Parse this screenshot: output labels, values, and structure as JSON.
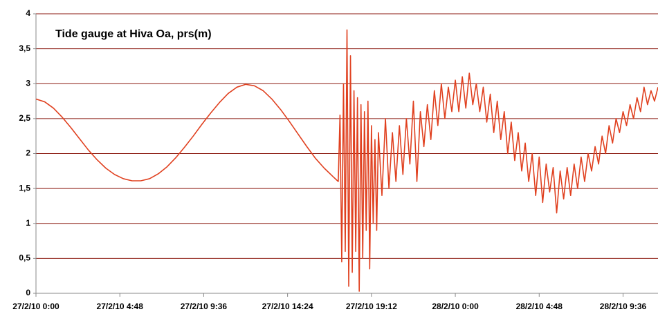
{
  "chart_data": {
    "type": "line",
    "title": "Tide gauge at Hiva Oa, prs(m)",
    "color": "#e0401f",
    "grid": true,
    "xlim": [
      0,
      35.6
    ],
    "ylim": [
      0,
      4
    ],
    "xticks": [
      {
        "value": 0,
        "label": "27/2/10 0:00"
      },
      {
        "value": 4.8,
        "label": "27/2/10 4:48"
      },
      {
        "value": 9.6,
        "label": "27/2/10 9:36"
      },
      {
        "value": 14.4,
        "label": "27/2/10 14:24"
      },
      {
        "value": 19.2,
        "label": "27/2/10 19:12"
      },
      {
        "value": 24,
        "label": "28/2/10 0:00"
      },
      {
        "value": 28.8,
        "label": "28/2/10 4:48"
      },
      {
        "value": 33.6,
        "label": "28/2/10 9:36"
      }
    ],
    "yticks": [
      0,
      {
        "value": 0.5,
        "label": "0,5"
      },
      1,
      {
        "value": 1.5,
        "label": "1,5"
      },
      2,
      {
        "value": 2.5,
        "label": "2,5"
      },
      3,
      {
        "value": 3.5,
        "label": "3,5"
      },
      4
    ],
    "x": [
      0,
      0.5,
      1,
      1.5,
      2,
      2.5,
      3,
      3.5,
      4,
      4.5,
      5,
      5.5,
      6,
      6.5,
      7,
      7.5,
      8,
      8.5,
      9,
      9.5,
      10,
      10.5,
      11,
      11.5,
      12,
      12.5,
      13,
      13.5,
      14,
      14.5,
      15,
      15.5,
      16,
      16.5,
      17,
      17.3,
      17.4,
      17.5,
      17.6,
      17.7,
      17.8,
      17.9,
      18.0,
      18.1,
      18.2,
      18.3,
      18.4,
      18.5,
      18.6,
      18.7,
      18.8,
      18.9,
      19.0,
      19.1,
      19.2,
      19.3,
      19.4,
      19.5,
      19.6,
      19.8,
      20.0,
      20.2,
      20.4,
      20.6,
      20.8,
      21.0,
      21.2,
      21.4,
      21.6,
      21.8,
      22.0,
      22.2,
      22.4,
      22.6,
      22.8,
      23.0,
      23.2,
      23.4,
      23.6,
      23.8,
      24.0,
      24.2,
      24.4,
      24.6,
      24.8,
      25.0,
      25.2,
      25.4,
      25.6,
      25.8,
      26.0,
      26.2,
      26.4,
      26.6,
      26.8,
      27.0,
      27.2,
      27.4,
      27.6,
      27.8,
      28.0,
      28.2,
      28.4,
      28.6,
      28.8,
      29.0,
      29.2,
      29.4,
      29.6,
      29.8,
      30.0,
      30.2,
      30.4,
      30.6,
      30.8,
      31.0,
      31.2,
      31.4,
      31.6,
      31.8,
      32.0,
      32.2,
      32.4,
      32.6,
      32.8,
      33.0,
      33.2,
      33.4,
      33.6,
      33.8,
      34.0,
      34.2,
      34.4,
      34.6,
      34.8,
      35.0,
      35.2,
      35.4,
      35.6
    ],
    "values": [
      2.78,
      2.74,
      2.65,
      2.52,
      2.37,
      2.21,
      2.05,
      1.91,
      1.79,
      1.7,
      1.64,
      1.61,
      1.61,
      1.64,
      1.71,
      1.81,
      1.94,
      2.09,
      2.25,
      2.42,
      2.58,
      2.73,
      2.86,
      2.95,
      2.99,
      2.97,
      2.9,
      2.78,
      2.63,
      2.46,
      2.28,
      2.1,
      1.93,
      1.79,
      1.67,
      1.6,
      2.55,
      0.45,
      3.0,
      0.6,
      3.77,
      0.1,
      3.4,
      0.3,
      2.9,
      0.6,
      2.8,
      0.03,
      2.7,
      0.5,
      2.6,
      0.9,
      2.75,
      0.35,
      2.4,
      1.0,
      2.2,
      0.9,
      2.3,
      1.4,
      2.5,
      1.5,
      2.3,
      1.6,
      2.4,
      1.7,
      2.5,
      1.85,
      2.75,
      1.6,
      2.6,
      2.1,
      2.7,
      2.2,
      2.9,
      2.4,
      3.0,
      2.5,
      2.95,
      2.6,
      3.05,
      2.6,
      3.1,
      2.65,
      3.15,
      2.7,
      3.0,
      2.6,
      2.95,
      2.45,
      2.85,
      2.3,
      2.75,
      2.2,
      2.6,
      2.0,
      2.45,
      1.9,
      2.3,
      1.75,
      2.15,
      1.6,
      2.0,
      1.4,
      1.95,
      1.3,
      1.85,
      1.45,
      1.8,
      1.15,
      1.75,
      1.35,
      1.8,
      1.4,
      1.85,
      1.5,
      1.95,
      1.6,
      2.0,
      1.75,
      2.1,
      1.85,
      2.25,
      2.0,
      2.4,
      2.15,
      2.5,
      2.3,
      2.6,
      2.4,
      2.7,
      2.5,
      2.8,
      2.6,
      2.95,
      2.7,
      2.9,
      2.75,
      2.95
    ]
  }
}
